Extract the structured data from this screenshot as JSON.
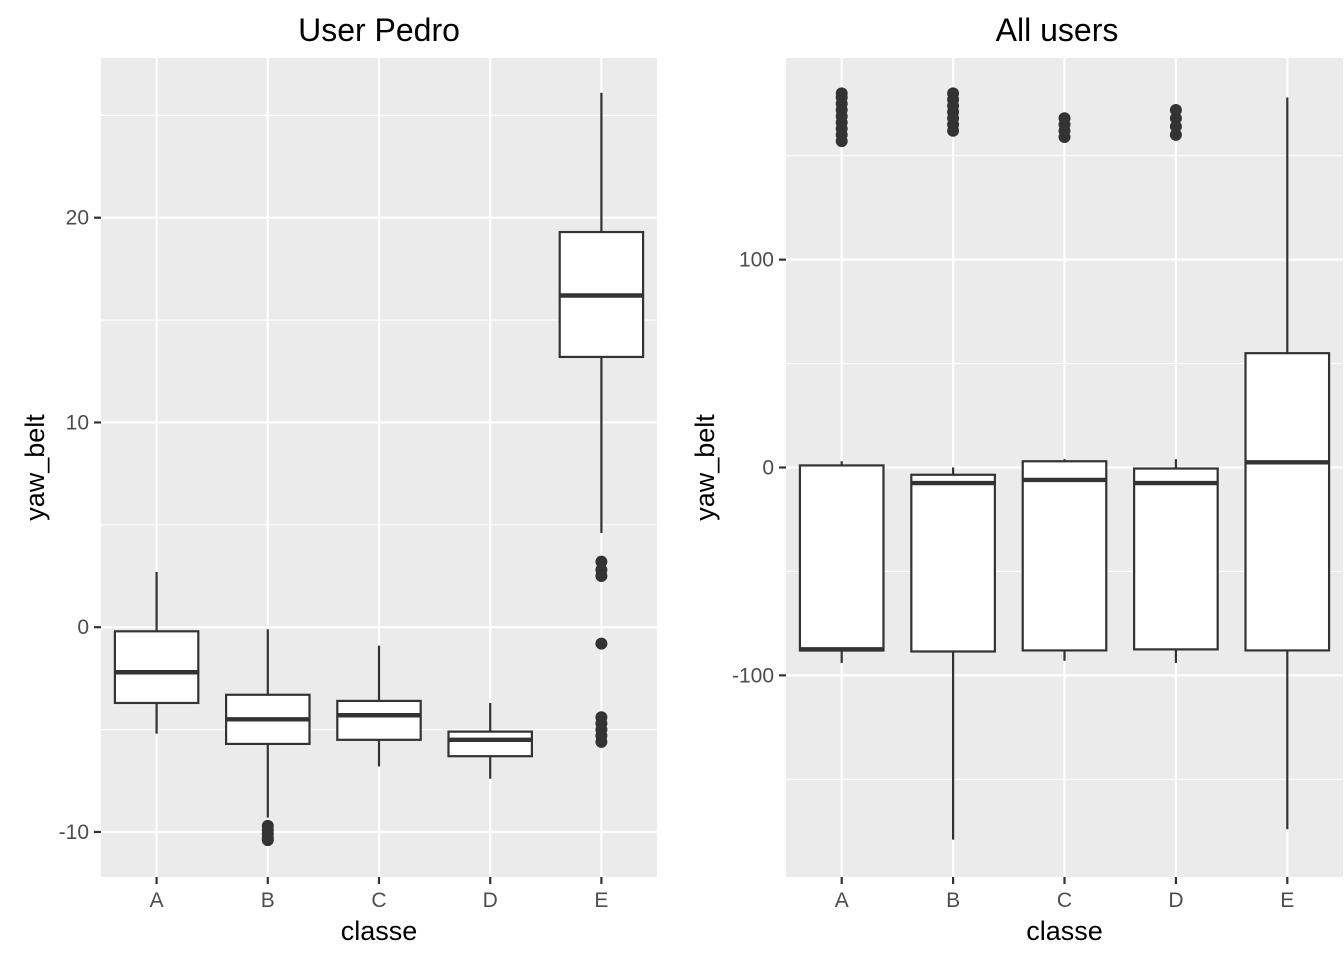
{
  "chart_data": [
    {
      "type": "boxplot",
      "title": "User Pedro",
      "xlabel": "classe",
      "ylabel": "yaw_belt",
      "categories": [
        "A",
        "B",
        "C",
        "D",
        "E"
      ],
      "ylim": [
        -12.2,
        27.8
      ],
      "y_ticks": [
        -10,
        0,
        10,
        20
      ],
      "y_tick_labels": [
        "-10",
        "0",
        "10",
        "20"
      ],
      "grid": true,
      "boxes": [
        {
          "category": "A",
          "whisker_low": -5.2,
          "q1": -3.7,
          "median": -2.2,
          "q3": -0.2,
          "whisker_high": 2.7,
          "outliers": []
        },
        {
          "category": "B",
          "whisker_low": -9.3,
          "q1": -5.7,
          "median": -4.5,
          "q3": -3.3,
          "whisker_high": -0.1,
          "outliers": [
            -9.7,
            -9.9,
            -10.1,
            -10.3,
            -10.4
          ]
        },
        {
          "category": "C",
          "whisker_low": -6.8,
          "q1": -5.5,
          "median": -4.3,
          "q3": -3.6,
          "whisker_high": -0.9,
          "outliers": []
        },
        {
          "category": "D",
          "whisker_low": -7.4,
          "q1": -6.3,
          "median": -5.5,
          "q3": -5.1,
          "whisker_high": -3.7,
          "outliers": []
        },
        {
          "category": "E",
          "whisker_low": 4.6,
          "q1": 13.2,
          "median": 16.2,
          "q3": 19.3,
          "whisker_high": 26.1,
          "outliers": [
            3.2,
            2.8,
            2.5,
            -0.8,
            -4.4,
            -4.7,
            -5.0,
            -5.3,
            -5.6
          ]
        }
      ]
    },
    {
      "type": "boxplot",
      "title": "All users",
      "xlabel": "classe",
      "ylabel": "yaw_belt",
      "categories": [
        "A",
        "B",
        "C",
        "D",
        "E"
      ],
      "ylim": [
        -197,
        197
      ],
      "y_ticks": [
        -100,
        0,
        100
      ],
      "y_tick_labels": [
        "-100",
        "0",
        "100"
      ],
      "grid": true,
      "boxes": [
        {
          "category": "A",
          "whisker_low": -94,
          "q1": -88,
          "median": -87.5,
          "q3": 1,
          "whisker_high": 3,
          "outliers": [
            157,
            160,
            163,
            166,
            169,
            172,
            175,
            178,
            180
          ]
        },
        {
          "category": "B",
          "whisker_low": -179,
          "q1": -88.5,
          "median": -7.5,
          "q3": -3.5,
          "whisker_high": 0,
          "outliers": [
            162,
            165,
            168,
            171,
            174,
            177,
            180
          ]
        },
        {
          "category": "C",
          "whisker_low": -93,
          "q1": -88,
          "median": -6,
          "q3": 3,
          "whisker_high": 4,
          "outliers": [
            159,
            162,
            165,
            168
          ]
        },
        {
          "category": "D",
          "whisker_low": -94,
          "q1": -87.5,
          "median": -7.5,
          "q3": -0.5,
          "whisker_high": 4,
          "outliers": [
            160,
            164,
            168,
            172
          ]
        },
        {
          "category": "E",
          "whisker_low": -174,
          "q1": -88,
          "median": 2.5,
          "q3": 55,
          "whisker_high": 178,
          "outliers": []
        }
      ]
    }
  ]
}
